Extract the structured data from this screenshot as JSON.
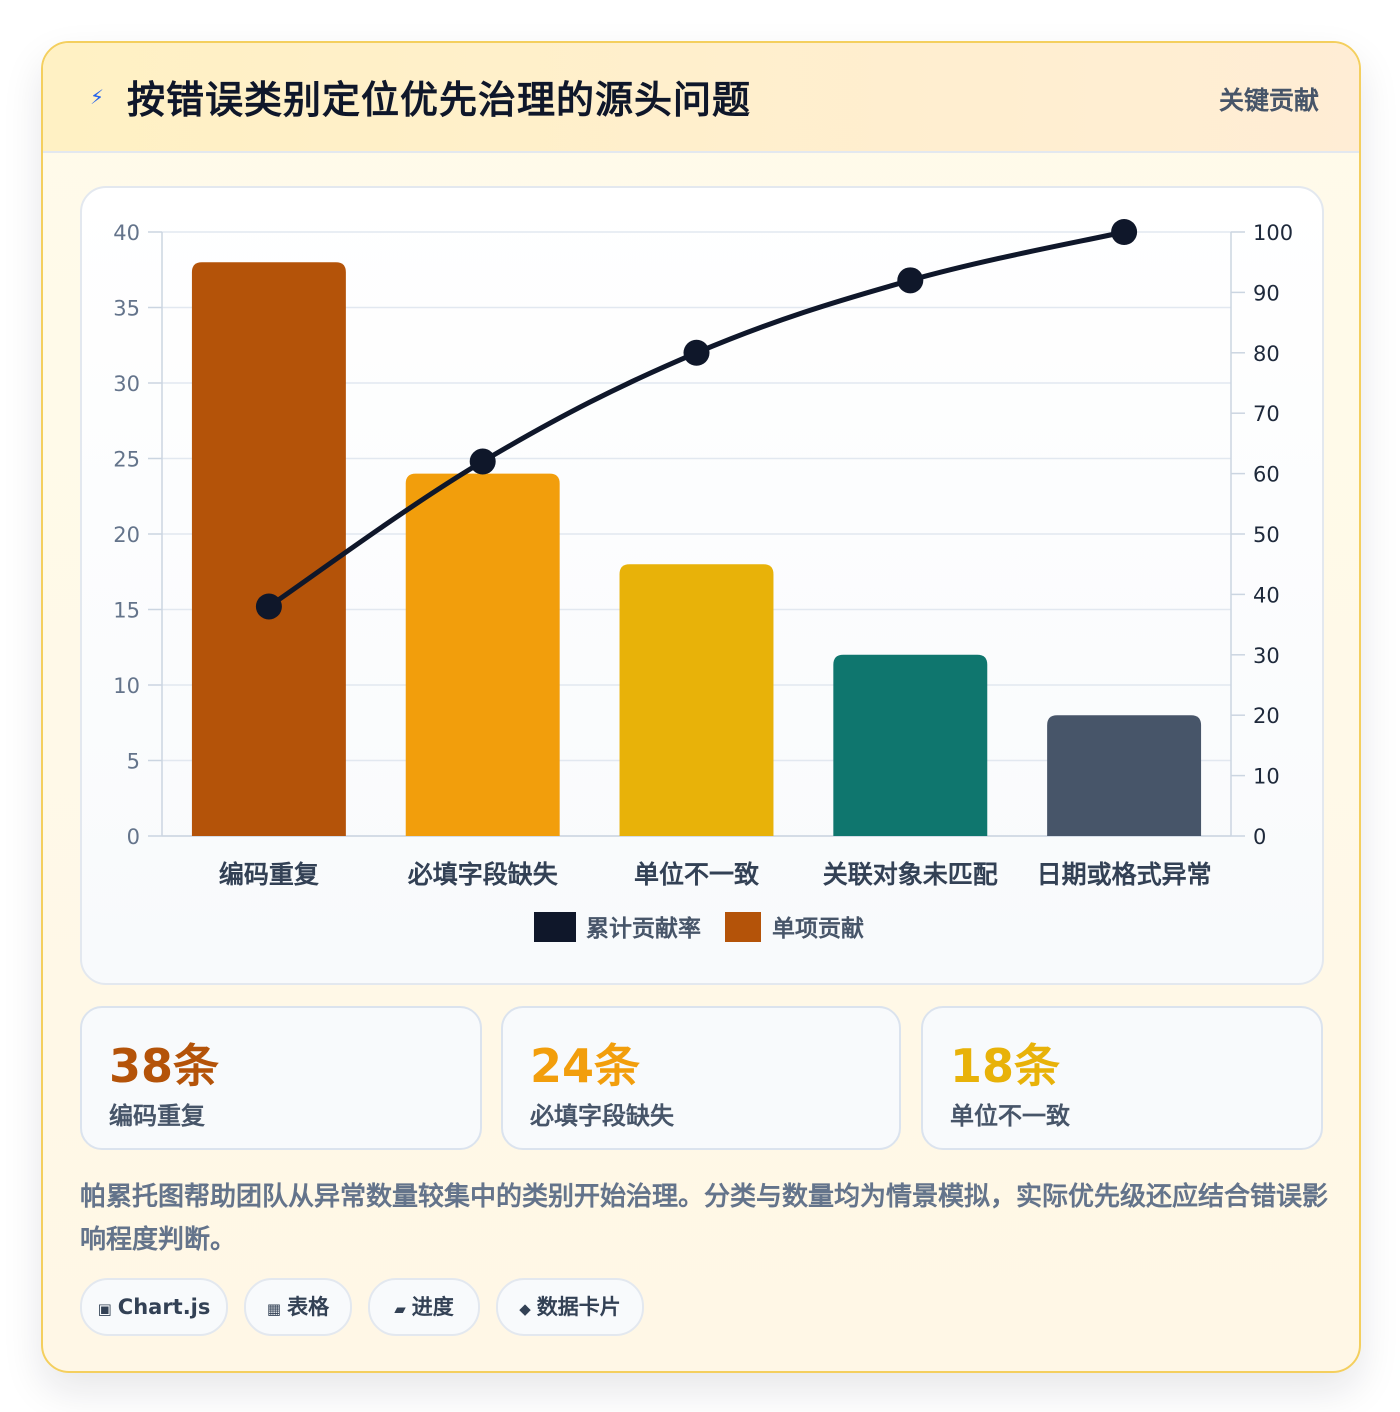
{
  "header": {
    "icon": "lightning-icon",
    "title": "按错误类别定位优先治理的源头问题",
    "badge": "关键贡献"
  },
  "chart_data": {
    "type": "bar",
    "categories": [
      "编码重复",
      "必填字段缺失",
      "单位不一致",
      "关联对象未匹配",
      "日期或格式异常"
    ],
    "series": [
      {
        "name": "单项贡献",
        "type": "bar",
        "axis": "left",
        "values": [
          38,
          24,
          18,
          12,
          8
        ],
        "colors": [
          "#b45309",
          "#f29e0c",
          "#e8b209",
          "#0f766e",
          "#475569"
        ]
      },
      {
        "name": "累计贡献率",
        "type": "line",
        "axis": "right",
        "values": [
          38,
          62,
          80,
          92,
          100
        ],
        "color": "#0f172a"
      }
    ],
    "ylim": [
      0,
      40
    ],
    "yticks": [
      0,
      5,
      10,
      15,
      20,
      25,
      30,
      35,
      40
    ],
    "y2lim": [
      0,
      100
    ],
    "y2ticks": [
      0,
      10,
      20,
      30,
      40,
      50,
      60,
      70,
      80,
      90,
      100
    ],
    "grid": true,
    "legend_position": "bottom"
  },
  "stats": [
    {
      "value": "38条",
      "label": "编码重复",
      "color": "#b45309"
    },
    {
      "value": "24条",
      "label": "必填字段缺失",
      "color": "#f29e0c"
    },
    {
      "value": "18条",
      "label": "单位不一致",
      "color": "#e8b209"
    }
  ],
  "note": "帕累托图帮助团队从异常数量较集中的类别开始治理。分类与数量均为情景模拟，实际优先级还应结合错误影响程度判断。",
  "tags": [
    {
      "icon": "▣",
      "label": "Chart.js"
    },
    {
      "icon": "▦",
      "label": "表格"
    },
    {
      "icon": "▰",
      "label": "进度"
    },
    {
      "icon": "◆",
      "label": "数据卡片"
    }
  ]
}
